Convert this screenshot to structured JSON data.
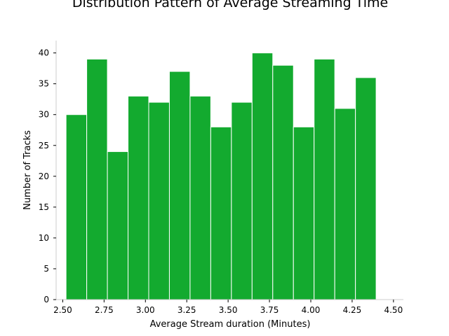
{
  "chart_data": {
    "type": "bar",
    "title": "Distribution Pattern of Average Streaming Time",
    "xlabel": "Average Stream duration (Minutes)",
    "ylabel": "Number of Tracks",
    "xlim": [
      2.46,
      4.56
    ],
    "ylim": [
      0,
      42
    ],
    "xticks": [
      "2.50",
      "2.75",
      "3.00",
      "3.25",
      "3.50",
      "3.75",
      "4.00",
      "4.25",
      "4.50"
    ],
    "yticks": [
      "0",
      "5",
      "10",
      "15",
      "20",
      "25",
      "30",
      "35",
      "40"
    ],
    "bin_start": 2.52,
    "bin_width": 0.125,
    "values": [
      30,
      39,
      24,
      33,
      32,
      37,
      33,
      28,
      32,
      40,
      38,
      28,
      39,
      31,
      36
    ],
    "bar_color": "#13aa2f",
    "edge_color": "#ffffff",
    "grid": false
  }
}
